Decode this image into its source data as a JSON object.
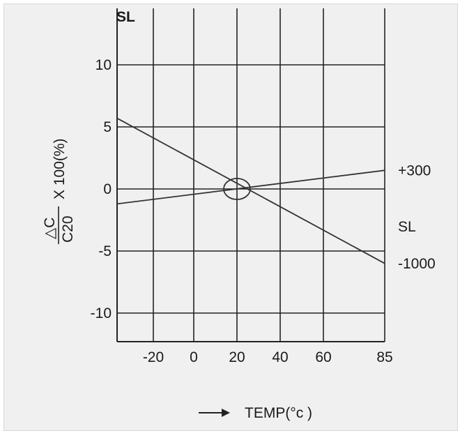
{
  "chart_data": {
    "type": "line",
    "title": "SL",
    "xlabel": "TEMP(°c )",
    "ylabel": "X 100(%)",
    "ylabel_fraction": {
      "numerator": "△C",
      "denominator": "C20"
    },
    "x_ticks": [
      "-20",
      "0",
      "20",
      "40",
      "60",
      "85"
    ],
    "y_ticks": [
      "10",
      "5",
      "0",
      "-5",
      "-10"
    ],
    "xlim": [
      -40,
      85
    ],
    "ylim": [
      -12,
      12
    ],
    "grid": true,
    "series": [
      {
        "name": "+300",
        "x": [
          -40,
          85
        ],
        "y": [
          -1.2,
          1.5
        ]
      },
      {
        "name": "-1000",
        "x": [
          -40,
          85
        ],
        "y": [
          5.7,
          -6.0
        ]
      }
    ],
    "band_label": "SL",
    "reference_point": {
      "x": 20,
      "y": 0
    }
  }
}
